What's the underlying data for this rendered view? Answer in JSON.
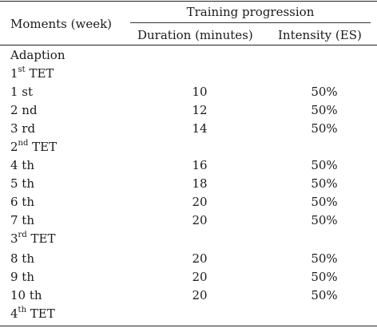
{
  "header": {
    "moments": "Moments (week)",
    "group": "Training progression",
    "duration": "Duration (minutes)",
    "intensity": "Intensity (ES)"
  },
  "rows": [
    {
      "moment": "Adaption",
      "duration": "",
      "intensity": ""
    },
    {
      "moment_num": "1",
      "moment_sup": "st",
      "moment_rest": " TET",
      "duration": "",
      "intensity": ""
    },
    {
      "moment": "1 st",
      "duration": "10",
      "intensity": "50%"
    },
    {
      "moment": "2 nd",
      "duration": "12",
      "intensity": "50%"
    },
    {
      "moment": "3 rd",
      "duration": "14",
      "intensity": "50%"
    },
    {
      "moment_num": "2",
      "moment_sup": "nd",
      "moment_rest": " TET",
      "duration": "",
      "intensity": ""
    },
    {
      "moment": "4 th",
      "duration": "16",
      "intensity": "50%"
    },
    {
      "moment": "5 th",
      "duration": "18",
      "intensity": "50%"
    },
    {
      "moment": "6 th",
      "duration": "20",
      "intensity": "50%"
    },
    {
      "moment": "7 th",
      "duration": "20",
      "intensity": "50%"
    },
    {
      "moment_num": "3",
      "moment_sup": "rd",
      "moment_rest": " TET",
      "duration": "",
      "intensity": ""
    },
    {
      "moment": "8 th",
      "duration": "20",
      "intensity": "50%"
    },
    {
      "moment": "9 th",
      "duration": "20",
      "intensity": "50%"
    },
    {
      "moment": "10 th",
      "duration": "20",
      "intensity": "50%"
    },
    {
      "moment_num": "4",
      "moment_sup": "th",
      "moment_rest": " TET",
      "duration": "",
      "intensity": ""
    }
  ]
}
